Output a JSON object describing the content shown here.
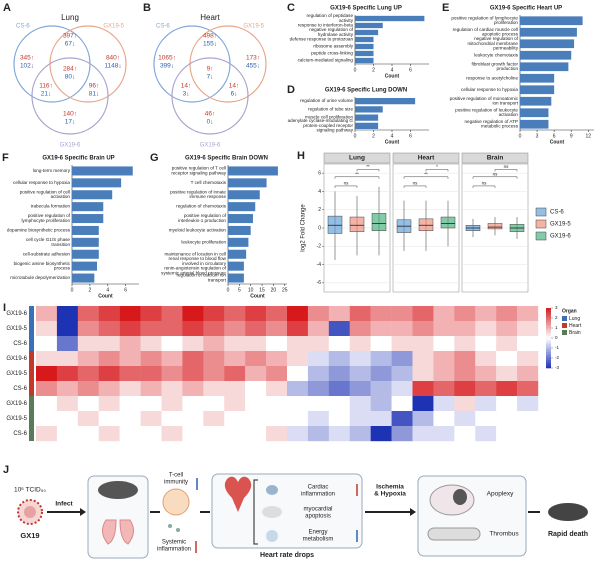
{
  "venn": [
    {
      "label": "A",
      "title": "Lung",
      "sets": [
        "CS-6",
        "GX19-5",
        "GX19-6"
      ],
      "colors": [
        "#7ea6d8",
        "#e8a487",
        "#a7a3cf"
      ],
      "regions": [
        {
          "up": "345↑",
          "down": "102↓"
        },
        {
          "up": "397↑",
          "down": "67↓"
        },
        {
          "up": "840↑",
          "down": "1148↓"
        },
        {
          "up": "116↑",
          "down": "21↓"
        },
        {
          "up": "284↑",
          "down": "80↓"
        },
        {
          "up": "96↑",
          "down": "81↓"
        },
        {
          "up": "140↑",
          "down": "17↓"
        }
      ]
    },
    {
      "label": "B",
      "title": "Heart",
      "sets": [
        "CS-6",
        "GX19-5",
        "GX19-6"
      ],
      "colors": [
        "#7ea6d8",
        "#e8a487",
        "#a7a3cf"
      ],
      "regions": [
        {
          "up": "1065↑",
          "down": "399↓"
        },
        {
          "up": "498↑",
          "down": "155↓"
        },
        {
          "up": "173↑",
          "down": "455↓"
        },
        {
          "up": "14↑",
          "down": "3↓"
        },
        {
          "up": "9↑",
          "down": "7↓"
        },
        {
          "up": "14↑",
          "down": "6↓"
        },
        {
          "up": "46↑",
          "down": "0↓"
        }
      ]
    }
  ],
  "bar_charts": [
    {
      "label": "C",
      "title": "GX19-6 Specific Lung UP",
      "color": "#4a7ebb",
      "xlabel": "Count",
      "xlim": [
        0,
        8
      ],
      "xticks": [
        0,
        2,
        4,
        6
      ],
      "categories": [
        "regulation of peptidase activity",
        "response to interferon-beta",
        "negative regulation of hydrolase activity",
        "defense response to protozoan",
        "ribosome assembly",
        "peptide cross-linking",
        "calcium-mediated signaling"
      ],
      "values": [
        7.5,
        3,
        2.5,
        2,
        2,
        2,
        2
      ]
    },
    {
      "label": "D",
      "title": "GX19-6 Specific Lung DOWN",
      "color": "#4a7ebb",
      "xlabel": "Count",
      "xlim": [
        0,
        8
      ],
      "xticks": [
        0,
        2,
        4,
        6
      ],
      "categories": [
        "regulation of urine volume",
        "regulation of tube size",
        "muscle cell proliferation",
        "adenylate cyclase-modulating G protein-coupled receptor signaling pathway"
      ],
      "values": [
        6.5,
        3,
        2.5,
        2.5
      ]
    },
    {
      "label": "E",
      "title": "GX19-6 Specific Heart UP",
      "color": "#4a7ebb",
      "xlabel": "Count",
      "xlim": [
        0,
        13
      ],
      "xticks": [
        0,
        3,
        6,
        9,
        12
      ],
      "categories": [
        "positive regulation of lymphocyte proliferation",
        "regulation of cardiac muscle cell apoptotic process",
        "negative regulation of mitochondrial membrane permeability",
        "leukocyte chemotaxis",
        "fibroblast growth factor production",
        "response to acetylcholine",
        "cellular response to hypoxia",
        "positive regulation of monoatomic ion transport",
        "positive regulation of leukocyte activation",
        "negative regulation of ATP metabolic process"
      ],
      "values": [
        11,
        10,
        9.5,
        9,
        8.5,
        6,
        6,
        5.5,
        5,
        5
      ]
    },
    {
      "label": "F",
      "title": "GX19-6 Specific Brain UP",
      "color": "#4a7ebb",
      "xlabel": "Count",
      "xlim": [
        0,
        7.5
      ],
      "xticks": [
        0,
        2,
        4,
        6
      ],
      "categories": [
        "long-term memory",
        "cellular response to hypoxia",
        "positive regulation of cell activation",
        "trabecula formation",
        "positive regulation of lymphocyte proliferation",
        "dopamine biosynthetic process",
        "cell cycle G1/S phase transition",
        "cell-substrate adhesion",
        "biogenic amine biosynthetic process",
        "microtubule depolymerization"
      ],
      "values": [
        6.8,
        5.5,
        4.5,
        3.5,
        3.5,
        3,
        3,
        3,
        2.8,
        2.5
      ]
    },
    {
      "label": "G",
      "title": "GX19-6 Specific Brain DOWN",
      "color": "#4a7ebb",
      "xlabel": "Count",
      "xlim": [
        0,
        26
      ],
      "xticks": [
        0,
        5,
        10,
        15,
        20,
        25
      ],
      "categories": [
        "positive regulation of T cell receptor signaling pathway",
        "T cell chemotaxis",
        "positive regulation of innate immune response",
        "regulation of chemotaxis",
        "positive regulation of interleukin-1 production",
        "myeloid leukocyte activation",
        "leukocyte proliferation",
        "maintenance of location in cell",
        "renal response to blood flow involved in circulatory renin-angiotensin regulation of systemic arterial blood pressure",
        "regulation of calcium ion transport"
      ],
      "values": [
        22,
        17,
        14,
        12,
        11,
        10,
        9,
        8,
        7,
        7
      ]
    }
  ],
  "boxplot": {
    "label": "H",
    "ylabel": "log2 Fold Change",
    "ylim": [
      -7,
      7
    ],
    "yticks": [
      -6,
      -4,
      -2,
      0,
      2,
      4,
      6
    ],
    "facets": [
      "Lung",
      "Heart",
      "Brain"
    ],
    "groups": [
      {
        "name": "CS-6",
        "color": "#5b9bd5"
      },
      {
        "name": "GX19-5",
        "color": "#f08a76"
      },
      {
        "name": "GX19-6",
        "color": "#3fae7a"
      }
    ],
    "boxes": [
      [
        [
          -3.5,
          -0.6,
          0.3,
          1.3,
          4
        ],
        [
          -3,
          -0.4,
          0.3,
          1.2,
          3.5
        ],
        [
          -3,
          -0.3,
          0.5,
          1.6,
          4.5
        ]
      ],
      [
        [
          -2.5,
          -0.5,
          0.2,
          0.9,
          3
        ],
        [
          -2.5,
          -0.3,
          0.3,
          1,
          3
        ],
        [
          -2,
          0,
          0.5,
          1.2,
          3
        ]
      ],
      [
        [
          -1,
          -0.3,
          0,
          0.3,
          1
        ],
        [
          -0.8,
          -0.1,
          0.1,
          0.5,
          1.2
        ],
        [
          -1.2,
          -0.4,
          0,
          0.4,
          1.2
        ]
      ]
    ],
    "significance": [
      [
        "ns",
        "**",
        "**"
      ],
      [
        "ns",
        "**",
        "*"
      ],
      [
        "ns",
        "ns",
        "ns"
      ]
    ]
  },
  "heatmap": {
    "label": "I",
    "rows": [
      "GX19-6",
      "GX19-5",
      "CS-6",
      "GX19-6",
      "GX19-5",
      "CS-6",
      "GX19-6",
      "GX19-5",
      "CS-6"
    ],
    "legend_ticks": [
      3,
      2,
      1,
      0,
      -1,
      -2,
      -3
    ],
    "organ_title": "Organ",
    "organs": [
      {
        "name": "Lung",
        "color": "#3b6fb6"
      },
      {
        "name": "Heart",
        "color": "#c0392b"
      },
      {
        "name": "Brain",
        "color": "#5a7a5a"
      }
    ],
    "values": [
      [
        1,
        -3,
        2,
        2.5,
        3,
        2.5,
        2,
        3,
        2.5,
        2,
        2.5,
        2,
        3,
        1.5,
        1,
        2,
        1.5,
        1.5,
        2,
        1,
        1.5,
        1,
        1.5,
        1
      ],
      [
        0.5,
        -3,
        1.5,
        2,
        2.5,
        2,
        2,
        2.5,
        2,
        1.5,
        2,
        1.5,
        2.5,
        1,
        -2.5,
        1.5,
        1,
        1,
        1.5,
        1,
        1,
        0.5,
        1,
        0.5
      ],
      [
        0,
        -2,
        0.5,
        0.5,
        1,
        0.5,
        0,
        0.5,
        1,
        0.5,
        0.5,
        0,
        0.5,
        0.5,
        0,
        0.5,
        0,
        0.5,
        0.5,
        0,
        0.5,
        0,
        0.5,
        0
      ],
      [
        0.5,
        0.5,
        1,
        1.5,
        1,
        1.5,
        1,
        2,
        1.5,
        1,
        1.5,
        1,
        0.5,
        -0.5,
        -1,
        -0.5,
        -1,
        -1.5,
        0.5,
        1,
        1.5,
        0.5,
        0,
        0.5
      ],
      [
        3,
        2.5,
        2,
        2.5,
        2,
        2,
        1.5,
        2,
        1.5,
        2,
        1,
        1.5,
        0,
        -1,
        -1.5,
        -1,
        -1.5,
        -1,
        0.5,
        1,
        1.5,
        1,
        0.5,
        1
      ],
      [
        1.5,
        1,
        1.5,
        1,
        0.5,
        1,
        0.5,
        1,
        0.5,
        0.5,
        0,
        0.5,
        -1,
        -1.5,
        -2,
        -1.5,
        -1,
        -0.5,
        2.5,
        2,
        2.5,
        2,
        2.5,
        2
      ],
      [
        0,
        0.5,
        0,
        0.5,
        0,
        0,
        0.5,
        0,
        0,
        0.5,
        0,
        0,
        0,
        0,
        0,
        -0.5,
        -1,
        0,
        -3,
        -0.5,
        0.5,
        -0.5,
        0,
        -0.5
      ],
      [
        0,
        0,
        0.5,
        0,
        0,
        0.5,
        0,
        0,
        0.5,
        0,
        0,
        0,
        0,
        -0.5,
        0,
        -0.5,
        -0.5,
        -2.5,
        -1,
        0,
        -0.5,
        0,
        0,
        0
      ],
      [
        0.5,
        0,
        0,
        0.5,
        0,
        0,
        0.5,
        0,
        0,
        0,
        0,
        0.5,
        -0.5,
        -1,
        -0.5,
        -1,
        -3,
        -1.5,
        -0.5,
        -0.5,
        0,
        -0.5,
        0,
        0
      ]
    ]
  },
  "schematic": {
    "label": "J",
    "dose": "10⁶ TCID₅₀",
    "virus": "GX19",
    "infect": "Infect",
    "t_cell": "T-cell immunity",
    "systemic": "Systemic inflammation",
    "cardiac": "Cardiac inflammation",
    "apoptosis": "myocardial apoptosis",
    "energy": "Energy metabolism",
    "heart_rate": "Heart rate drops",
    "ischemia": "Ischemia & Hypoxia",
    "apoplexy": "Apoplexy",
    "thrombus": "Thrombus",
    "death": "Rapid death"
  }
}
